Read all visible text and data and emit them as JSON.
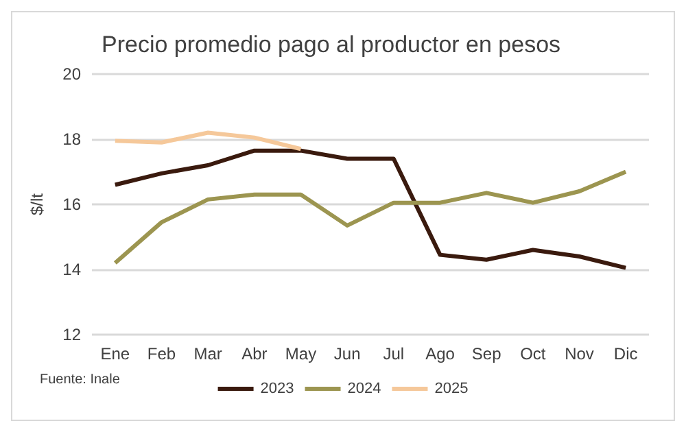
{
  "chart_data": {
    "type": "line",
    "title": "Precio promedio pago al productor en pesos",
    "ylabel": "$/lt",
    "categories": [
      "Ene",
      "Feb",
      "Mar",
      "Abr",
      "May",
      "Jun",
      "Jul",
      "Ago",
      "Sep",
      "Oct",
      "Nov",
      "Dic"
    ],
    "series": [
      {
        "name": "2023",
        "color": "#3a1a0e",
        "values": [
          16.6,
          16.95,
          17.2,
          17.65,
          17.65,
          17.4,
          17.4,
          14.45,
          14.3,
          14.6,
          14.4,
          14.05
        ]
      },
      {
        "name": "2024",
        "color": "#9c9550",
        "values": [
          14.2,
          15.45,
          16.15,
          16.3,
          16.3,
          15.35,
          16.05,
          16.05,
          16.35,
          16.05,
          16.4,
          17.0
        ]
      },
      {
        "name": "2025",
        "color": "#f5c89a",
        "values": [
          17.95,
          17.9,
          18.2,
          18.05,
          17.7,
          null,
          null,
          null,
          null,
          null,
          null,
          null
        ]
      }
    ],
    "ylim": [
      12,
      20
    ],
    "yticks": [
      12,
      14,
      16,
      18,
      20
    ],
    "grid": "y",
    "legend": "bottom",
    "annotations": [
      "Fuente: Inale"
    ]
  }
}
